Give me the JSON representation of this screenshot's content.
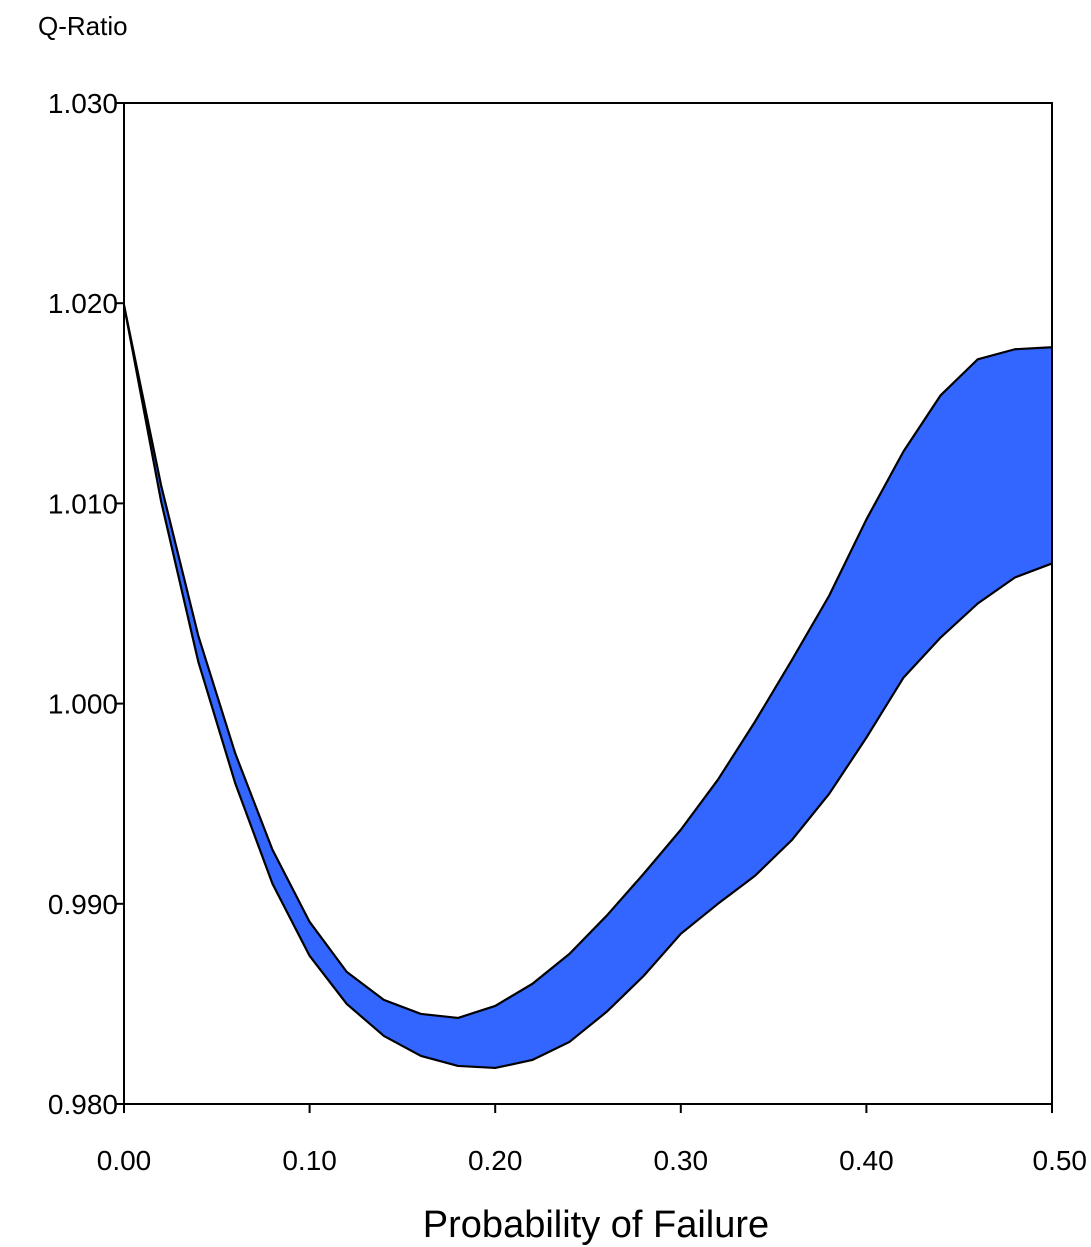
{
  "chart_data": {
    "type": "area",
    "title": "",
    "xlabel": "Probability of Failure",
    "ylabel": "Q-Ratio",
    "xlim": [
      0,
      0.5
    ],
    "ylim": [
      0.98,
      1.03
    ],
    "x_ticks": [
      "0.00",
      "0.10",
      "0.20",
      "0.30",
      "0.40",
      "0.50"
    ],
    "y_ticks": [
      "0.980",
      "0.990",
      "1.000",
      "1.010",
      "1.020",
      "1.030"
    ],
    "grid": false,
    "legend": "none",
    "fill_color": "#3366ff",
    "line_color": "#000000",
    "band": {
      "x": [
        0.0,
        0.02,
        0.04,
        0.06,
        0.08,
        0.1,
        0.12,
        0.14,
        0.16,
        0.18,
        0.2,
        0.22,
        0.24,
        0.26,
        0.28,
        0.3,
        0.32,
        0.34,
        0.36,
        0.38,
        0.4,
        0.42,
        0.44,
        0.46,
        0.48,
        0.5
      ],
      "upper": [
        1.0199,
        1.0109,
        1.0034,
        0.9975,
        0.9927,
        0.9891,
        0.9866,
        0.9852,
        0.9845,
        0.9843,
        0.9849,
        0.986,
        0.9875,
        0.9894,
        0.9915,
        0.9937,
        0.9962,
        0.9991,
        1.0022,
        1.0054,
        1.0092,
        1.0126,
        1.0154,
        1.0172,
        1.0177,
        1.0178
      ],
      "lower": [
        1.0199,
        1.0101,
        1.0021,
        0.996,
        0.991,
        0.9874,
        0.985,
        0.9834,
        0.9824,
        0.9819,
        0.9818,
        0.9822,
        0.9831,
        0.9846,
        0.9864,
        0.9885,
        0.99,
        0.9914,
        0.9932,
        0.9955,
        0.9983,
        1.0013,
        1.0033,
        1.005,
        1.0063,
        1.007
      ]
    }
  }
}
